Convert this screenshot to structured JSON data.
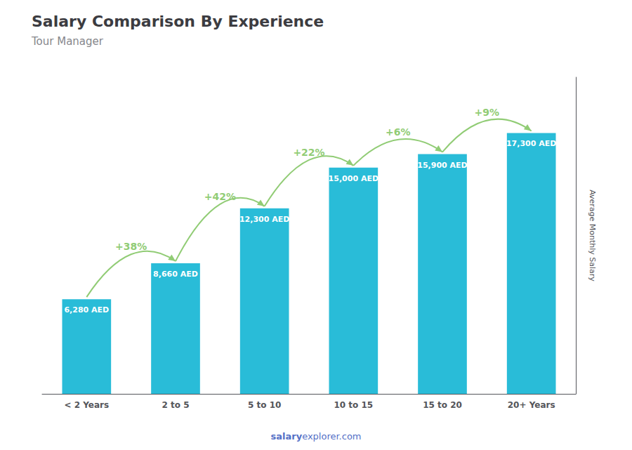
{
  "chart_data": {
    "type": "bar",
    "title": "Salary Comparison By Experience",
    "subtitle": "Tour Manager",
    "categories": [
      "< 2 Years",
      "2 to 5",
      "5 to 10",
      "10 to 15",
      "15 to 20",
      "20+ Years"
    ],
    "values": [
      6280,
      8660,
      12300,
      15000,
      15900,
      17300
    ],
    "value_labels": [
      "6,280 AED",
      "8,660 AED",
      "12,300 AED",
      "15,000 AED",
      "15,900 AED",
      "17,300 AED"
    ],
    "data_labels": true,
    "color": "#29bcd8",
    "ylabel": "Average Monthly Salary",
    "ylim": [
      0,
      21000
    ],
    "tick_labels": "x",
    "grid": false,
    "annotations": [
      "+38%",
      "+42%",
      "+22%",
      "+6%",
      "+9%"
    ],
    "footer": [
      "salary",
      "explorer.com"
    ]
  }
}
